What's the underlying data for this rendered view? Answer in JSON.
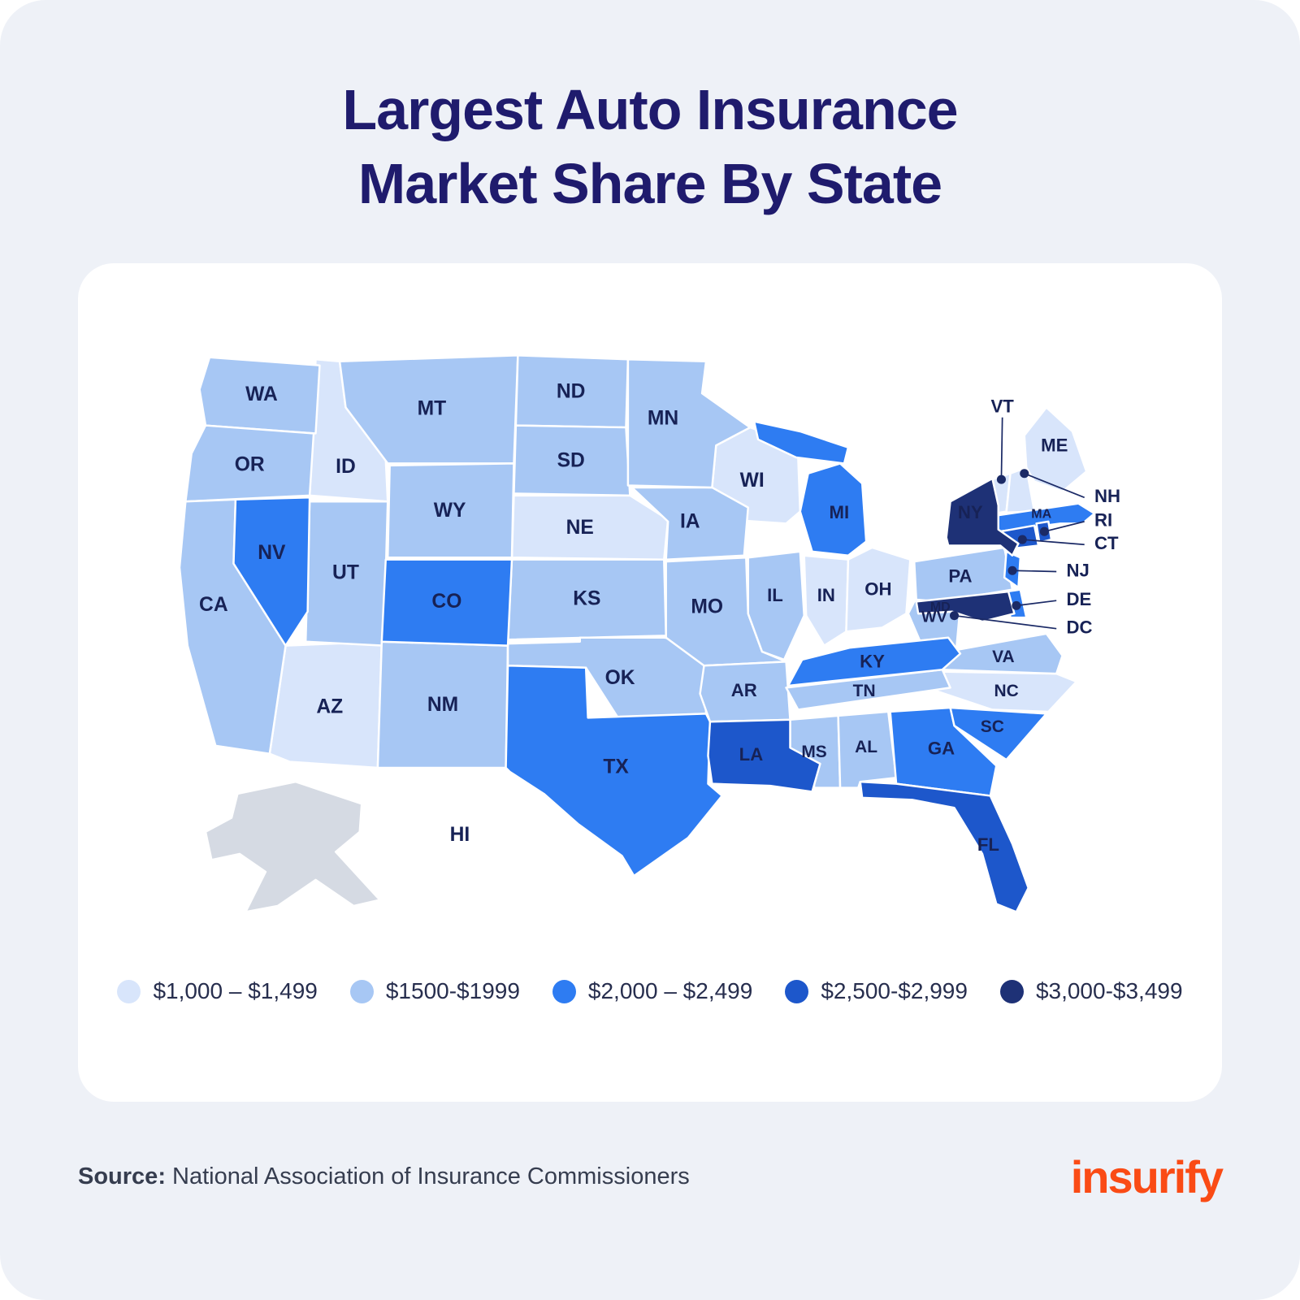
{
  "title": {
    "line1": "Largest Auto Insurance",
    "line2": "Market Share By State"
  },
  "footer": {
    "source_label": "Source:",
    "source_text": "National Association of Insurance Commissioners",
    "brand": "insurify"
  },
  "theme": {
    "page_bg": "#EEF1F7",
    "card_bg": "#FFFFFF",
    "title_color": "#1F1B6D",
    "map_label_color": "#172256",
    "map_line_color": "#1B2A66",
    "no_data_color": "#D5DAE3",
    "legend_text_color": "#272E4E",
    "source_text_color": "#363D4F",
    "brand_color": "#FA4B15"
  },
  "chart_data": {
    "type": "heatmap",
    "variant": "us_state_choropleth",
    "title": "Largest Auto Insurance Market Share By State",
    "legend_position": "bottom",
    "buckets": [
      {
        "label": "$1,000 – $1,499",
        "color": "#D8E5FB",
        "states": [
          "ID",
          "AZ",
          "NE",
          "WI",
          "IN",
          "OH",
          "NC",
          "VT",
          "NH",
          "ME"
        ]
      },
      {
        "label": "$1500-$1999",
        "color": "#A7C7F4",
        "states": [
          "WA",
          "OR",
          "CA",
          "MT",
          "ND",
          "SD",
          "WY",
          "UT",
          "NM",
          "KS",
          "OK",
          "MO",
          "IA",
          "MN",
          "IL",
          "AR",
          "TN",
          "MS",
          "AL",
          "WV",
          "VA",
          "PA"
        ]
      },
      {
        "label": "$2,000 – $2,499",
        "color": "#2E7CF2",
        "states": [
          "NV",
          "CO",
          "TX",
          "MI",
          "KY",
          "GA",
          "SC",
          "NJ",
          "DE",
          "MA"
        ]
      },
      {
        "label": "$2,500-$2,999",
        "color": "#1D57CB",
        "states": [
          "LA",
          "FL",
          "CT",
          "RI"
        ]
      },
      {
        "label": "$3,000-$3,499",
        "color": "#1E3176",
        "states": [
          "NY",
          "MD",
          "DC"
        ]
      }
    ],
    "no_data_states": [
      "AK"
    ],
    "label_only_states": [
      "HI"
    ]
  }
}
